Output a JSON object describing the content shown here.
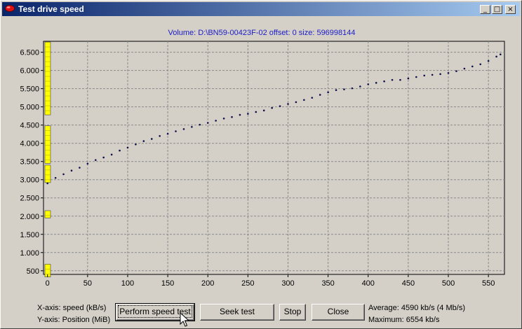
{
  "window": {
    "title": "Test drive speed"
  },
  "title_buttons": {
    "minimize": "_",
    "maximize": "□",
    "close": "×"
  },
  "chart_data": {
    "type": "scatter",
    "title": "Volume: D:\\BN59-00423F-02 offset: 0 size: 596998144",
    "xlim": [
      -5,
      570
    ],
    "ylim": [
      400,
      6800
    ],
    "xticks": [
      0,
      50,
      100,
      150,
      200,
      250,
      300,
      350,
      400,
      450,
      500,
      550
    ],
    "yticks": [
      500,
      1000,
      1500,
      2000,
      2500,
      3000,
      3500,
      4000,
      4500,
      5000,
      5500,
      6000,
      6500
    ],
    "ytick_labels": [
      "500",
      "1.000",
      "1.500",
      "2.000",
      "2.500",
      "3.000",
      "3.500",
      "4.000",
      "4.500",
      "5.000",
      "5.500",
      "6.000",
      "6.500"
    ],
    "grid": true,
    "position_segments_mib": [
      [
        330,
        680
      ],
      [
        1950,
        2150
      ],
      [
        2920,
        3400
      ],
      [
        3450,
        4480
      ],
      [
        4780,
        6780
      ]
    ],
    "series": [
      {
        "x": [
          0,
          10,
          20,
          30,
          40,
          50,
          60,
          70,
          80,
          90,
          100,
          110,
          120,
          130,
          140,
          150,
          160,
          170,
          180,
          190,
          200,
          210,
          220,
          230,
          240,
          250,
          260,
          270,
          280,
          290,
          300,
          310,
          320,
          330,
          340,
          350,
          360,
          370,
          380,
          390,
          400,
          410,
          420,
          430,
          440,
          450,
          460,
          470,
          480,
          490,
          500,
          510,
          520,
          530,
          540,
          550,
          560,
          565
        ],
        "y": [
          2900,
          3050,
          3150,
          3250,
          3330,
          3440,
          3540,
          3610,
          3690,
          3800,
          3880,
          3970,
          4060,
          4120,
          4200,
          4260,
          4330,
          4390,
          4450,
          4510,
          4560,
          4620,
          4680,
          4720,
          4780,
          4810,
          4860,
          4900,
          4970,
          5020,
          5080,
          5130,
          5190,
          5250,
          5330,
          5400,
          5460,
          5480,
          5510,
          5560,
          5620,
          5660,
          5700,
          5740,
          5740,
          5780,
          5820,
          5860,
          5880,
          5900,
          5930,
          5980,
          6050,
          6110,
          6170,
          6260,
          6380,
          6440
        ]
      }
    ]
  },
  "buttons": {
    "perform": "Perform speed test",
    "seek": "Seek test",
    "stop": "Stop",
    "close": "Close"
  },
  "axis_info": {
    "x": "X-axis: speed (kB/s)",
    "y": "Y-axis: Position (MiB)"
  },
  "stats": {
    "average": "Average: 4590 kb/s (4 Mb/s)",
    "maximum": "Maximum: 6554 kb/s"
  }
}
